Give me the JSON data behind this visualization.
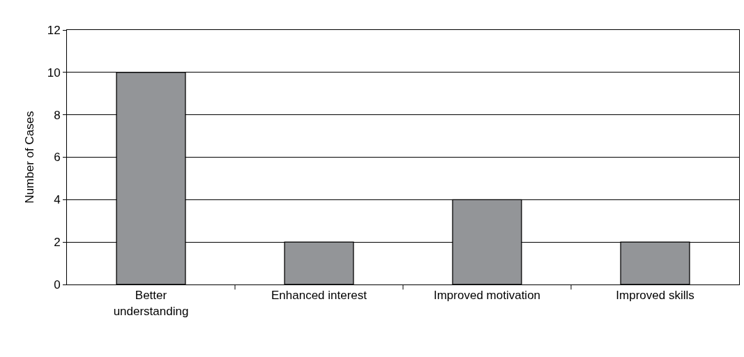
{
  "chart_data": {
    "type": "bar",
    "ylabel": "Number of Cases",
    "categories": [
      "Better\nunderstanding",
      "Enhanced interest",
      "Improved motivation",
      "Improved skills"
    ],
    "values": [
      10,
      2,
      4,
      2
    ],
    "color": "#939598",
    "ylim": [
      0,
      12
    ],
    "yticks": [
      0,
      2,
      4,
      6,
      8,
      10,
      12
    ],
    "grid": "y"
  }
}
